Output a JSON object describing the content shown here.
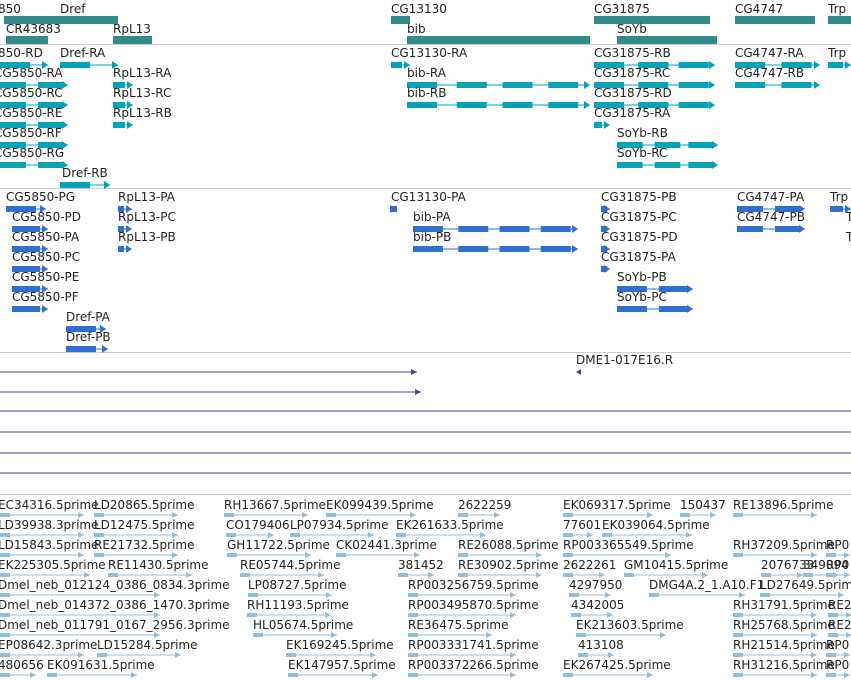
{
  "colors": {
    "gene": "#338a8a",
    "transcript": "#00a3b8",
    "protein": "#2f6fd0",
    "clone": "#553f90",
    "est": "#8fbfdf"
  },
  "tracks": [
    {
      "name": "genes",
      "features": [
        {
          "label": "850",
          "color": "gene",
          "glyph": "none"
        },
        {
          "label": "Dref",
          "color": "gene",
          "glyph": "bar"
        },
        {
          "label": "CR43683",
          "color": "gene",
          "glyph": "bar"
        },
        {
          "label": "RpL13",
          "color": "gene",
          "glyph": "bar"
        },
        {
          "label": "CG13130",
          "color": "gene",
          "glyph": "bar"
        },
        {
          "label": "bib",
          "color": "gene",
          "glyph": "bar"
        },
        {
          "label": "CG31875",
          "color": "gene",
          "glyph": "bar"
        },
        {
          "label": "SoYb",
          "color": "gene",
          "glyph": "bar"
        },
        {
          "label": "CG4747",
          "color": "gene",
          "glyph": "bar"
        },
        {
          "label": "Trp",
          "color": "gene",
          "glyph": "bar"
        }
      ]
    },
    {
      "name": "transcripts",
      "features": [
        {
          "label": "850-RD",
          "color": "transcript",
          "glyph": "exons"
        },
        {
          "label": "Dref-RA",
          "color": "transcript",
          "glyph": "exons"
        },
        {
          "label": "CG5850-RA",
          "color": "transcript",
          "glyph": "exons"
        },
        {
          "label": "CG5850-RC",
          "color": "transcript",
          "glyph": "exons"
        },
        {
          "label": "CG5850-RE",
          "color": "transcript",
          "glyph": "exons"
        },
        {
          "label": "CG5850-RF",
          "color": "transcript",
          "glyph": "exons"
        },
        {
          "label": "CG5850-RG",
          "color": "transcript",
          "glyph": "exons"
        },
        {
          "label": "Dref-RB",
          "color": "transcript",
          "glyph": "exons"
        },
        {
          "label": "RpL13-RA",
          "color": "transcript",
          "glyph": "exons"
        },
        {
          "label": "RpL13-RC",
          "color": "transcript",
          "glyph": "exons"
        },
        {
          "label": "RpL13-RB",
          "color": "transcript",
          "glyph": "exons"
        },
        {
          "label": "CG13130-RA",
          "color": "transcript",
          "glyph": "exons"
        },
        {
          "label": "bib-RA",
          "color": "transcript",
          "glyph": "exons"
        },
        {
          "label": "bib-RB",
          "color": "transcript",
          "glyph": "exons"
        },
        {
          "label": "CG31875-RB",
          "color": "transcript",
          "glyph": "exons"
        },
        {
          "label": "CG31875-RC",
          "color": "transcript",
          "glyph": "exons"
        },
        {
          "label": "CG31875-RD",
          "color": "transcript",
          "glyph": "exons"
        },
        {
          "label": "CG31875-RA",
          "color": "transcript",
          "glyph": "exons"
        },
        {
          "label": "SoYb-RB",
          "color": "transcript",
          "glyph": "exons"
        },
        {
          "label": "SoYb-RC",
          "color": "transcript",
          "glyph": "exons"
        },
        {
          "label": "CG4747-RA",
          "color": "transcript",
          "glyph": "exons"
        },
        {
          "label": "CG4747-RB",
          "color": "transcript",
          "glyph": "exons"
        },
        {
          "label": "Trp",
          "color": "transcript",
          "glyph": "exons"
        }
      ]
    },
    {
      "name": "proteins",
      "features": [
        {
          "label": "CG5850-PG",
          "color": "protein",
          "glyph": "exons"
        },
        {
          "label": "CG5850-PD",
          "color": "protein",
          "glyph": "exons"
        },
        {
          "label": "CG5850-PA",
          "color": "protein",
          "glyph": "exons"
        },
        {
          "label": "CG5850-PC",
          "color": "protein",
          "glyph": "exons"
        },
        {
          "label": "CG5850-PE",
          "color": "protein",
          "glyph": "exons"
        },
        {
          "label": "CG5850-PF",
          "color": "protein",
          "glyph": "exons"
        },
        {
          "label": "Dref-PA",
          "color": "protein",
          "glyph": "exons"
        },
        {
          "label": "Dref-PB",
          "color": "protein",
          "glyph": "exons"
        },
        {
          "label": "RpL13-PA",
          "color": "protein",
          "glyph": "exons"
        },
        {
          "label": "RpL13-PC",
          "color": "protein",
          "glyph": "exons"
        },
        {
          "label": "RpL13-PB",
          "color": "protein",
          "glyph": "exons"
        },
        {
          "label": "CG13130-PA",
          "color": "protein",
          "glyph": "exons"
        },
        {
          "label": "bib-PA",
          "color": "protein",
          "glyph": "exons"
        },
        {
          "label": "bib-PB",
          "color": "protein",
          "glyph": "exons"
        },
        {
          "label": "CG31875-PB",
          "color": "protein",
          "glyph": "exons"
        },
        {
          "label": "CG31875-PC",
          "color": "protein",
          "glyph": "exons"
        },
        {
          "label": "CG31875-PD",
          "color": "protein",
          "glyph": "exons"
        },
        {
          "label": "CG31875-PA",
          "color": "protein",
          "glyph": "exons"
        },
        {
          "label": "SoYb-PB",
          "color": "protein",
          "glyph": "exons"
        },
        {
          "label": "SoYb-PC",
          "color": "protein",
          "glyph": "exons"
        },
        {
          "label": "CG4747-PA",
          "color": "protein",
          "glyph": "exons"
        },
        {
          "label": "CG4747-PB",
          "color": "protein",
          "glyph": "exons"
        },
        {
          "label": "Trp",
          "color": "protein",
          "glyph": "exons"
        },
        {
          "label": "T",
          "color": "protein",
          "glyph": "none"
        },
        {
          "label": "T",
          "color": "protein",
          "glyph": "none"
        }
      ]
    },
    {
      "name": "clones",
      "features": [
        {
          "label": "",
          "color": "clone",
          "glyph": "line"
        },
        {
          "label": "",
          "color": "clone",
          "glyph": "line"
        },
        {
          "label": "DME1-017E16.R",
          "color": "clone",
          "glyph": "tick"
        },
        {
          "label": "",
          "color": "clone",
          "glyph": "line"
        },
        {
          "label": "",
          "color": "clone",
          "glyph": "line"
        },
        {
          "label": "",
          "color": "clone",
          "glyph": "line"
        },
        {
          "label": "",
          "color": "clone",
          "glyph": "line"
        }
      ]
    },
    {
      "name": "ests",
      "features": [
        {
          "label": "EC34316.5prime",
          "color": "est",
          "glyph": "est"
        },
        {
          "label": "LD20865.5prime",
          "color": "est",
          "glyph": "est"
        },
        {
          "label": "RH13667.5prime",
          "color": "est",
          "glyph": "est"
        },
        {
          "label": "EK099439.5prime",
          "color": "est",
          "glyph": "est"
        },
        {
          "label": "2622259",
          "color": "est",
          "glyph": "est"
        },
        {
          "label": "EK069317.5prime",
          "color": "est",
          "glyph": "est"
        },
        {
          "label": "150437",
          "color": "est",
          "glyph": "est"
        },
        {
          "label": "RE13896.5prime",
          "color": "est",
          "glyph": "est"
        },
        {
          "label": "LD39938.3prime",
          "color": "est",
          "glyph": "est"
        },
        {
          "label": "LD12475.5prime",
          "color": "est",
          "glyph": "est"
        },
        {
          "label": "CO179406",
          "color": "est",
          "glyph": "est"
        },
        {
          "label": "LP07934.5prime",
          "color": "est",
          "glyph": "est"
        },
        {
          "label": "EK261633.5prime",
          "color": "est",
          "glyph": "est"
        },
        {
          "label": "77601",
          "color": "est",
          "glyph": "est"
        },
        {
          "label": "EK039064.5prime",
          "color": "est",
          "glyph": "est"
        },
        {
          "label": "LD15843.5prime",
          "color": "est",
          "glyph": "est"
        },
        {
          "label": "RE21732.5prime",
          "color": "est",
          "glyph": "est"
        },
        {
          "label": "GH11722.5prime",
          "color": "est",
          "glyph": "est"
        },
        {
          "label": "CK02441.3prime",
          "color": "est",
          "glyph": "est"
        },
        {
          "label": "RE26088.5prime",
          "color": "est",
          "glyph": "est"
        },
        {
          "label": "RP003365549.5prime",
          "color": "est",
          "glyph": "est"
        },
        {
          "label": "RH37209.5prime",
          "color": "est",
          "glyph": "est"
        },
        {
          "label": "RP0",
          "color": "est",
          "glyph": "est"
        },
        {
          "label": "EK225305.5prime",
          "color": "est",
          "glyph": "est"
        },
        {
          "label": "RE11430.5prime",
          "color": "est",
          "glyph": "est"
        },
        {
          "label": "RE05744.5prime",
          "color": "est",
          "glyph": "est"
        },
        {
          "label": "381452",
          "color": "est",
          "glyph": "est"
        },
        {
          "label": "RE30902.5prime",
          "color": "est",
          "glyph": "est"
        },
        {
          "label": "2622261",
          "color": "est",
          "glyph": "est"
        },
        {
          "label": "GM10415.5prime",
          "color": "est",
          "glyph": "est"
        },
        {
          "label": "2076733",
          "color": "est",
          "glyph": "est"
        },
        {
          "label": "349094",
          "color": "est",
          "glyph": "est"
        },
        {
          "label": "RP0",
          "color": "est",
          "glyph": "est"
        },
        {
          "label": "Dmel_neb_012124_0386_0834.3prime",
          "color": "est",
          "glyph": "est"
        },
        {
          "label": "LP08727.5prime",
          "color": "est",
          "glyph": "est"
        },
        {
          "label": "RP003256759.5prime",
          "color": "est",
          "glyph": "est"
        },
        {
          "label": "4297950",
          "color": "est",
          "glyph": "est"
        },
        {
          "label": "DMG4A.2_1.A10.F1",
          "color": "est",
          "glyph": "est"
        },
        {
          "label": "LD27649.5prime",
          "color": "est",
          "glyph": "est"
        },
        {
          "label": "Dmel_neb_014372_0386_1470.3prime",
          "color": "est",
          "glyph": "est"
        },
        {
          "label": "RH11193.5prime",
          "color": "est",
          "glyph": "est"
        },
        {
          "label": "RP003495870.5prime",
          "color": "est",
          "glyph": "est"
        },
        {
          "label": "4342005",
          "color": "est",
          "glyph": "est"
        },
        {
          "label": "RH31791.5prime",
          "color": "est",
          "glyph": "est"
        },
        {
          "label": "RE2",
          "color": "est",
          "glyph": "est"
        },
        {
          "label": "Dmel_neb_011791_0167_2956.3prime",
          "color": "est",
          "glyph": "est"
        },
        {
          "label": "HL05674.5prime",
          "color": "est",
          "glyph": "est"
        },
        {
          "label": "RE36475.5prime",
          "color": "est",
          "glyph": "est"
        },
        {
          "label": "EK213603.5prime",
          "color": "est",
          "glyph": "est"
        },
        {
          "label": "RH25768.5prime",
          "color": "est",
          "glyph": "est"
        },
        {
          "label": "RE2",
          "color": "est",
          "glyph": "est"
        },
        {
          "label": "EP08642.3prime",
          "color": "est",
          "glyph": "est"
        },
        {
          "label": "LD15284.5prime",
          "color": "est",
          "glyph": "est"
        },
        {
          "label": "EK169245.5prime",
          "color": "est",
          "glyph": "est"
        },
        {
          "label": "RP003331741.5prime",
          "color": "est",
          "glyph": "est"
        },
        {
          "label": "413108",
          "color": "est",
          "glyph": "est"
        },
        {
          "label": "RH21514.5prime",
          "color": "est",
          "glyph": "est"
        },
        {
          "label": "RP0",
          "color": "est",
          "glyph": "est"
        },
        {
          "label": "480656",
          "color": "est",
          "glyph": "est"
        },
        {
          "label": "EK091631.5prime",
          "color": "est",
          "glyph": "est"
        },
        {
          "label": "EK147957.5prime",
          "color": "est",
          "glyph": "est"
        },
        {
          "label": "RP003372266.5prime",
          "color": "est",
          "glyph": "est"
        },
        {
          "label": "EK267425.5prime",
          "color": "est",
          "glyph": "est"
        },
        {
          "label": "RH31216.5prime",
          "color": "est",
          "glyph": "est"
        },
        {
          "label": "RP0",
          "color": "est",
          "glyph": "est"
        }
      ]
    }
  ]
}
